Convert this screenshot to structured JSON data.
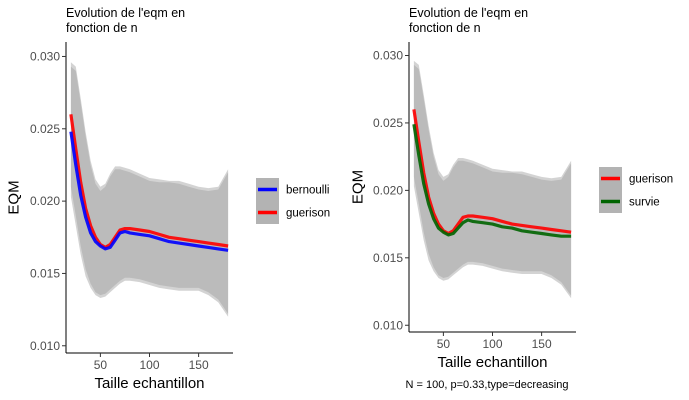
{
  "caption": "N = 100, p=0.33,type=decreasing",
  "chart_data": [
    {
      "type": "line",
      "title": "Evolution de l'eqm en fonction de n",
      "title_lines": [
        "Evolution de l'eqm en",
        "fonction de n"
      ],
      "xlabel": "Taille echantillon",
      "ylabel": "EQM",
      "xlim": [
        15,
        185
      ],
      "ylim": [
        0.0095,
        0.031
      ],
      "x_ticks": [
        50,
        100,
        150
      ],
      "y_ticks": [
        0.01,
        0.015,
        0.02,
        0.025,
        0.03
      ],
      "y_tick_labels": [
        "0.010",
        "0.015",
        "0.020",
        "0.025",
        "0.030"
      ],
      "grid": false,
      "legend_position": "right",
      "legend": [
        {
          "name": "bernoulli",
          "color": "#0000ff"
        },
        {
          "name": "guerison",
          "color": "#ff0000"
        }
      ],
      "x": [
        20,
        25,
        30,
        35,
        40,
        45,
        50,
        55,
        60,
        65,
        70,
        75,
        80,
        90,
        100,
        110,
        120,
        130,
        140,
        150,
        160,
        170,
        180
      ],
      "ribbons": [
        {
          "name": "bernoulli-band",
          "lower": [
            0.0203,
            0.0183,
            0.0163,
            0.0148,
            0.014,
            0.0135,
            0.0133,
            0.0134,
            0.0137,
            0.014,
            0.0143,
            0.0145,
            0.0145,
            0.0144,
            0.0142,
            0.014,
            0.0139,
            0.0138,
            0.0138,
            0.0138,
            0.0135,
            0.013,
            0.012
          ],
          "upper": [
            0.0293,
            0.029,
            0.0268,
            0.0245,
            0.0225,
            0.0212,
            0.0207,
            0.021,
            0.0217,
            0.0222,
            0.0222,
            0.0221,
            0.022,
            0.0217,
            0.0214,
            0.0213,
            0.0213,
            0.0212,
            0.021,
            0.0208,
            0.0207,
            0.0208,
            0.022
          ]
        },
        {
          "name": "guerison-band",
          "lower": [
            0.021,
            0.019,
            0.0169,
            0.0153,
            0.0143,
            0.0137,
            0.0135,
            0.0136,
            0.0139,
            0.0142,
            0.0145,
            0.0147,
            0.0147,
            0.0146,
            0.0144,
            0.0142,
            0.0141,
            0.014,
            0.014,
            0.014,
            0.0137,
            0.0132,
            0.0122
          ],
          "upper": [
            0.0296,
            0.0293,
            0.0271,
            0.0248,
            0.0228,
            0.0215,
            0.021,
            0.0212,
            0.0219,
            0.0224,
            0.0224,
            0.0223,
            0.0222,
            0.0219,
            0.0216,
            0.0215,
            0.0214,
            0.0214,
            0.0212,
            0.021,
            0.0209,
            0.021,
            0.0222
          ]
        }
      ],
      "series": [
        {
          "name": "guerison",
          "color": "#ff0000",
          "values": [
            0.026,
            0.0236,
            0.0213,
            0.0195,
            0.0183,
            0.0175,
            0.017,
            0.0168,
            0.017,
            0.0175,
            0.018,
            0.0181,
            0.0181,
            0.018,
            0.0179,
            0.0177,
            0.0175,
            0.0174,
            0.0173,
            0.0172,
            0.0171,
            0.017,
            0.0169
          ]
        },
        {
          "name": "bernoulli",
          "color": "#0000ff",
          "values": [
            0.0248,
            0.0225,
            0.0204,
            0.0189,
            0.0178,
            0.0172,
            0.0169,
            0.0167,
            0.0168,
            0.0173,
            0.0178,
            0.0179,
            0.0178,
            0.0177,
            0.0176,
            0.0174,
            0.0172,
            0.0171,
            0.017,
            0.0169,
            0.0168,
            0.0167,
            0.0166
          ]
        }
      ]
    },
    {
      "type": "line",
      "title": "Evolution de l'eqm en fonction de n",
      "title_lines": [
        "Evolution de l'eqm en",
        "fonction de n"
      ],
      "xlabel": "Taille echantillon",
      "ylabel": "EQM",
      "xlim": [
        15,
        185
      ],
      "ylim": [
        0.0095,
        0.031
      ],
      "x_ticks": [
        50,
        100,
        150
      ],
      "y_ticks": [
        0.01,
        0.015,
        0.02,
        0.025,
        0.03
      ],
      "y_tick_labels": [
        "0.010",
        "0.015",
        "0.020",
        "0.025",
        "0.030"
      ],
      "grid": false,
      "legend_position": "right",
      "legend": [
        {
          "name": "guerison",
          "color": "#ff0000"
        },
        {
          "name": "survie",
          "color": "#006400"
        }
      ],
      "x": [
        20,
        25,
        30,
        35,
        40,
        45,
        50,
        55,
        60,
        65,
        70,
        75,
        80,
        90,
        100,
        110,
        120,
        130,
        140,
        150,
        160,
        170,
        180
      ],
      "ribbons": [
        {
          "name": "guerison-band",
          "lower": [
            0.021,
            0.019,
            0.0169,
            0.0153,
            0.0143,
            0.0137,
            0.0135,
            0.0136,
            0.0139,
            0.0142,
            0.0145,
            0.0147,
            0.0147,
            0.0146,
            0.0144,
            0.0142,
            0.0141,
            0.014,
            0.014,
            0.014,
            0.0137,
            0.0132,
            0.0122
          ],
          "upper": [
            0.0296,
            0.0293,
            0.0271,
            0.0248,
            0.0228,
            0.0215,
            0.021,
            0.0212,
            0.0219,
            0.0224,
            0.0224,
            0.0223,
            0.0222,
            0.0219,
            0.0216,
            0.0215,
            0.0214,
            0.0214,
            0.0212,
            0.021,
            0.0209,
            0.021,
            0.0222
          ]
        },
        {
          "name": "survie-band",
          "lower": [
            0.0203,
            0.0183,
            0.0163,
            0.0148,
            0.014,
            0.0135,
            0.0133,
            0.0134,
            0.0137,
            0.014,
            0.0143,
            0.0145,
            0.0145,
            0.0144,
            0.0142,
            0.014,
            0.0139,
            0.0138,
            0.0138,
            0.0138,
            0.0135,
            0.013,
            0.012
          ],
          "upper": [
            0.0293,
            0.029,
            0.0268,
            0.0245,
            0.0225,
            0.0212,
            0.0207,
            0.021,
            0.0217,
            0.0222,
            0.0222,
            0.0221,
            0.022,
            0.0217,
            0.0214,
            0.0213,
            0.0213,
            0.0212,
            0.021,
            0.0208,
            0.0207,
            0.0208,
            0.022
          ]
        }
      ],
      "series": [
        {
          "name": "guerison",
          "color": "#ff0000",
          "values": [
            0.026,
            0.0236,
            0.0213,
            0.0195,
            0.0183,
            0.0175,
            0.017,
            0.0168,
            0.017,
            0.0175,
            0.018,
            0.0181,
            0.0181,
            0.018,
            0.0179,
            0.0177,
            0.0175,
            0.0174,
            0.0173,
            0.0172,
            0.0171,
            0.017,
            0.0169
          ]
        },
        {
          "name": "survie",
          "color": "#006400",
          "values": [
            0.0249,
            0.0226,
            0.0205,
            0.019,
            0.0179,
            0.0172,
            0.0169,
            0.0167,
            0.0168,
            0.0172,
            0.0176,
            0.0178,
            0.0177,
            0.0176,
            0.0175,
            0.0173,
            0.0172,
            0.017,
            0.0169,
            0.0168,
            0.0167,
            0.0166,
            0.0166
          ]
        }
      ]
    }
  ]
}
